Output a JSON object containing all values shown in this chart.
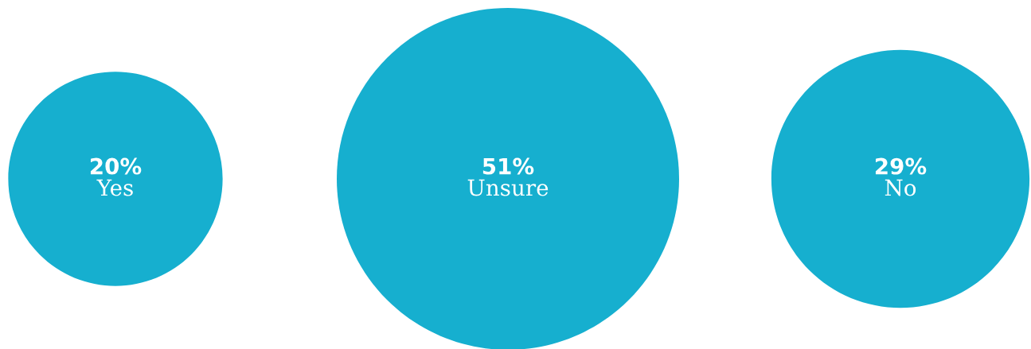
{
  "chart_data": {
    "type": "other",
    "categories": [
      "Yes",
      "Unsure",
      "No"
    ],
    "values": [
      20,
      51,
      29
    ],
    "value_labels": [
      "20%",
      "51%",
      "29%"
    ],
    "color": "#16afcf"
  }
}
